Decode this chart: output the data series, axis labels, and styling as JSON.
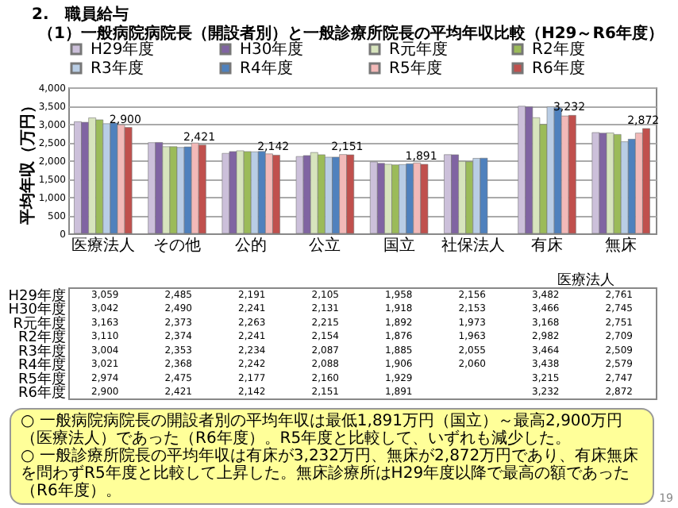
{
  "chart_data": {
    "type": "bar",
    "title": "2.　職員給与",
    "subtitle": "（1）一般病院病院長（開設者別）と一般診療所院長の平均年収比較（H29～R6年度）",
    "ylabel": "平均年収（万円）",
    "categories": [
      "医療法人",
      "その他",
      "公的",
      "公立",
      "国立",
      "社保法人",
      "有床",
      "無床"
    ],
    "series": [
      {
        "name": "H29年度",
        "color": "#ccc0da",
        "values": [
          3059,
          2485,
          2191,
          2105,
          1958,
          2156,
          3482,
          2761
        ],
        "value_labels": [
          "3,059",
          "2,485",
          "2,191",
          "2,105",
          "1,958",
          "2,156",
          "3,482",
          "2,761"
        ]
      },
      {
        "name": "H30年度",
        "color": "#8064a2",
        "values": [
          3042,
          2490,
          2241,
          2131,
          1918,
          2153,
          3466,
          2745
        ],
        "value_labels": [
          "3,042",
          "2,490",
          "2,241",
          "2,131",
          "1,918",
          "2,153",
          "3,466",
          "2,745"
        ]
      },
      {
        "name": "R元年度",
        "color": "#d7e4bd",
        "values": [
          3163,
          2373,
          2263,
          2215,
          1892,
          1973,
          3168,
          2751
        ],
        "value_labels": [
          "3,163",
          "2,373",
          "2,263",
          "2,215",
          "1,892",
          "1,973",
          "3,168",
          "2,751"
        ]
      },
      {
        "name": "R2年度",
        "color": "#9bbb59",
        "values": [
          3110,
          2374,
          2241,
          2154,
          1876,
          1963,
          2982,
          2709
        ],
        "value_labels": [
          "3,110",
          "2,374",
          "2,241",
          "2,154",
          "1,876",
          "1,963",
          "2,982",
          "2,709"
        ]
      },
      {
        "name": "R3年度",
        "color": "#b9cde5",
        "values": [
          3004,
          2353,
          2234,
          2087,
          1885,
          2055,
          3464,
          2509
        ],
        "value_labels": [
          "3,004",
          "2,353",
          "2,234",
          "2,087",
          "1,885",
          "2,055",
          "3,464",
          "2,509"
        ]
      },
      {
        "name": "R4年度",
        "color": "#4f81bd",
        "values": [
          3021,
          2368,
          2242,
          2088,
          1906,
          2060,
          3438,
          2579
        ],
        "value_labels": [
          "3,021",
          "2,368",
          "2,242",
          "2,088",
          "1,906",
          "2,060",
          "3,438",
          "2,579"
        ]
      },
      {
        "name": "R5年度",
        "color": "#f2b9b8",
        "values": [
          2974,
          2475,
          2177,
          2160,
          1929,
          null,
          3215,
          2747
        ],
        "value_labels": [
          "2,974",
          "2,475",
          "2,177",
          "2,160",
          "1,929",
          null,
          "3,215",
          "2,747"
        ]
      },
      {
        "name": "R6年度",
        "color": "#c0504d",
        "values": [
          2900,
          2421,
          2142,
          2151,
          1891,
          null,
          3232,
          2872
        ],
        "value_labels": [
          "2,900",
          "2,421",
          "2,142",
          "2,151",
          "1,891",
          null,
          "3,232",
          "2,872"
        ]
      }
    ],
    "ylim": [
      0,
      4000
    ],
    "yticks": [
      0,
      500,
      {
        "value": 1000,
        "label": "1,000"
      },
      {
        "value": 1500,
        "label": "1,500"
      },
      {
        "value": 2000,
        "label": "2,000"
      },
      {
        "value": 2500,
        "label": "2,500"
      },
      {
        "value": 3000,
        "label": "3,000"
      },
      {
        "value": 3500,
        "label": "3,500"
      },
      {
        "value": 4000,
        "label": "4,000"
      }
    ],
    "grid": "y",
    "legend": "top",
    "annotations": [
      "医療法人",
      "○ 一般病院病院長の開設者別の平均年収は最低1,891万円（国立）～最高2,900万円（医療法人）であった（R6年度）。R5年度と比較して、いずれも減少した。",
      "○ 一般診療所院長の平均年収は有床が3,232万円、無床が2,872万円であり、有床無床を問わずR5年度と比較して上昇した。無床診療所はH29年度以降で最高の額であった（R6年度）。",
      "19",
      {
        "text": "2,900",
        "x": "医療法人",
        "y": 2900
      },
      {
        "text": "2,421",
        "x": "その他",
        "y": 2421
      },
      {
        "text": "2,142",
        "x": "公的",
        "y": 2142
      },
      {
        "text": "2,151",
        "x": "公立",
        "y": 2151
      },
      {
        "text": "1,891",
        "x": "国立",
        "y": 1891
      },
      {
        "text": "3,232",
        "x": "有床",
        "y": 3232
      },
      {
        "text": "2,872",
        "x": "無床",
        "y": 2872
      }
    ]
  }
}
